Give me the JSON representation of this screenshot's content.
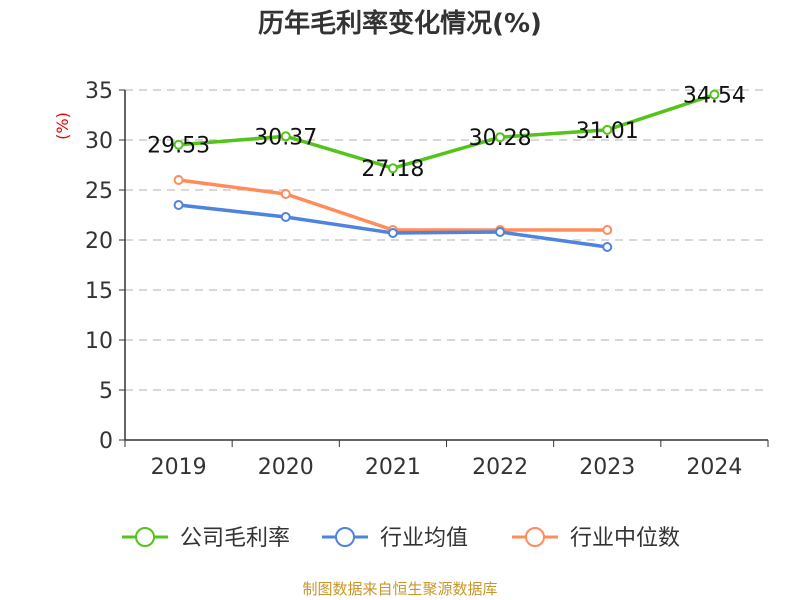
{
  "chart_data": {
    "type": "line",
    "title": "历年毛利率变化情况(%)",
    "ylabel": "(%)",
    "xlabel": "",
    "categories": [
      "2019",
      "2020",
      "2021",
      "2022",
      "2023",
      "2024"
    ],
    "ylim": [
      0,
      35
    ],
    "yticks": [
      "0",
      "5",
      "10",
      "15",
      "20",
      "25",
      "30",
      "35"
    ],
    "grid": true,
    "legend_placement": "bottom",
    "series": [
      {
        "name": "公司毛利率",
        "color": "#52c41a",
        "values": [
          29.53,
          30.37,
          27.18,
          30.28,
          31.01,
          34.54
        ],
        "labels": [
          "29.53",
          "30.37",
          "27.18",
          "30.28",
          "31.01",
          "34.54"
        ]
      },
      {
        "name": "行业均值",
        "color": "#4e83e0",
        "values": [
          23.5,
          22.3,
          20.7,
          20.8,
          19.3,
          null
        ]
      },
      {
        "name": "行业中位数",
        "color": "#ff8c5a",
        "values": [
          26.0,
          24.6,
          21.0,
          21.0,
          21.0,
          null
        ]
      }
    ],
    "source": "制图数据来自恒生聚源数据库"
  }
}
